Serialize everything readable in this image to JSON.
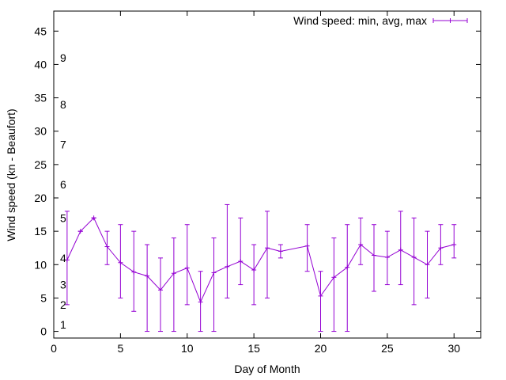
{
  "chart_data": {
    "type": "line",
    "title": "",
    "xlabel": "Day of Month",
    "ylabel": "Wind speed (kn - Beaufort)",
    "xlim": [
      0,
      32
    ],
    "ylim": [
      -1,
      48
    ],
    "xticks": [
      0,
      5,
      10,
      15,
      20,
      25,
      30
    ],
    "yticks": [
      0,
      5,
      10,
      15,
      20,
      25,
      30,
      35,
      40,
      45
    ],
    "grid": false,
    "legend": "top-right",
    "series_color": "#9400d3",
    "series": [
      {
        "name": "Wind speed: min, avg, max",
        "points": [
          {
            "x": 1,
            "min": 4,
            "avg": 10.7,
            "max": 18
          },
          {
            "x": 2,
            "min": 15,
            "avg": 15,
            "max": 15
          },
          {
            "x": 3,
            "min": 17,
            "avg": 17,
            "max": 17
          },
          {
            "x": 4,
            "min": 10,
            "avg": 12.7,
            "max": 15
          },
          {
            "x": 5,
            "min": 5,
            "avg": 10.3,
            "max": 16
          },
          {
            "x": 6,
            "min": 3,
            "avg": 8.9,
            "max": 15
          },
          {
            "x": 7,
            "min": 0,
            "avg": 8.3,
            "max": 13
          },
          {
            "x": 8,
            "min": 0,
            "avg": 6.2,
            "max": 11
          },
          {
            "x": 9,
            "min": 0,
            "avg": 8.7,
            "max": 14
          },
          {
            "x": 10,
            "min": 4,
            "avg": 9.5,
            "max": 16
          },
          {
            "x": 11,
            "min": 0,
            "avg": 4.4,
            "max": 9
          },
          {
            "x": 12,
            "min": 0,
            "avg": 8.8,
            "max": 14
          },
          {
            "x": 13,
            "min": 5,
            "avg": 9.7,
            "max": 19
          },
          {
            "x": 14,
            "min": 7,
            "avg": 10.5,
            "max": 17
          },
          {
            "x": 15,
            "min": 4,
            "avg": 9.2,
            "max": 13
          },
          {
            "x": 16,
            "min": 5,
            "avg": 12.5,
            "max": 18
          },
          {
            "x": 17,
            "min": 11,
            "avg": 12,
            "max": 13
          },
          {
            "x": 19,
            "min": 9,
            "avg": 12.8,
            "max": 16
          },
          {
            "x": 20,
            "min": 0,
            "avg": 5.3,
            "max": 9
          },
          {
            "x": 21,
            "min": 0,
            "avg": 8.1,
            "max": 14
          },
          {
            "x": 22,
            "min": 0,
            "avg": 9.6,
            "max": 16
          },
          {
            "x": 23,
            "min": 10,
            "avg": 13,
            "max": 17
          },
          {
            "x": 24,
            "min": 6,
            "avg": 11.4,
            "max": 16
          },
          {
            "x": 25,
            "min": 7,
            "avg": 11.1,
            "max": 15
          },
          {
            "x": 26,
            "min": 7,
            "avg": 12.2,
            "max": 18
          },
          {
            "x": 27,
            "min": 4,
            "avg": 11.1,
            "max": 17
          },
          {
            "x": 28,
            "min": 5,
            "avg": 10,
            "max": 15
          },
          {
            "x": 29,
            "min": 10,
            "avg": 12.5,
            "max": 16
          },
          {
            "x": 30,
            "min": 11,
            "avg": 13,
            "max": 16
          }
        ]
      }
    ],
    "beaufort_labels": [
      {
        "label": "1",
        "y": 1
      },
      {
        "label": "2",
        "y": 4
      },
      {
        "label": "3",
        "y": 7
      },
      {
        "label": "4",
        "y": 11
      },
      {
        "label": "5",
        "y": 17
      },
      {
        "label": "6",
        "y": 22
      },
      {
        "label": "7",
        "y": 28
      },
      {
        "label": "8",
        "y": 34
      },
      {
        "label": "9",
        "y": 41
      }
    ]
  }
}
